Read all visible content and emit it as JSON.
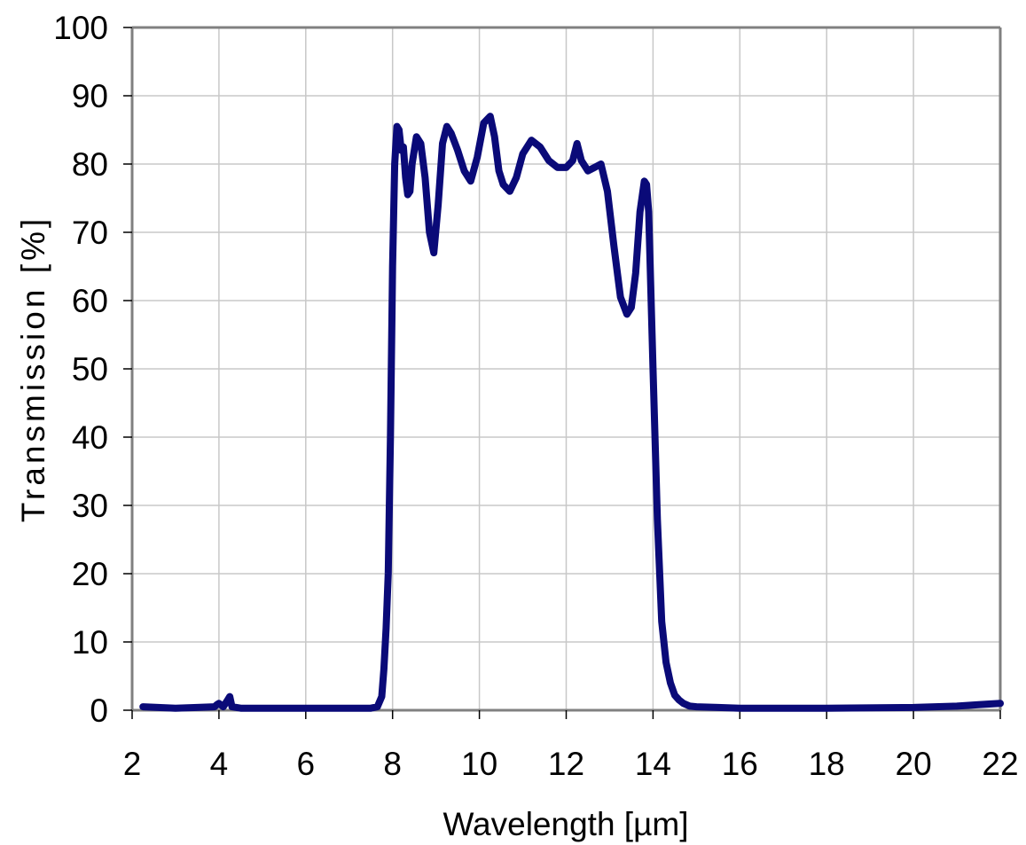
{
  "chart_data": {
    "type": "line",
    "title": "",
    "xlabel": "Wavelength [µm]",
    "ylabel": "Transmission  [%]",
    "xlim": [
      2,
      22
    ],
    "ylim": [
      0,
      100
    ],
    "x_ticks": [
      2,
      4,
      6,
      8,
      10,
      12,
      14,
      16,
      18,
      20,
      22
    ],
    "y_ticks": [
      0,
      10,
      20,
      30,
      40,
      50,
      60,
      70,
      80,
      90,
      100
    ],
    "x_tick_labels": [
      "2",
      "4",
      "6",
      "8",
      "10",
      "12",
      "14",
      "16",
      "18",
      "20",
      "22"
    ],
    "y_tick_labels": [
      "0",
      "10",
      "20",
      "30",
      "40",
      "50",
      "60",
      "70",
      "80",
      "90",
      "100"
    ],
    "grid": true,
    "legend": "none",
    "colors": {
      "line": "#0a0a78",
      "grid": "#c8c8c8",
      "frame": "#808080"
    },
    "series": [
      {
        "x": [
          2.25,
          3.0,
          3.5,
          3.9,
          3.95,
          4.0,
          4.1,
          4.2,
          4.25,
          4.3,
          4.5,
          5.0,
          6.0,
          7.0,
          7.5,
          7.65,
          7.75,
          7.8,
          7.85,
          7.9,
          7.95,
          8.0,
          8.05,
          8.1,
          8.15,
          8.2,
          8.25,
          8.3,
          8.35,
          8.4,
          8.45,
          8.55,
          8.65,
          8.75,
          8.85,
          8.95,
          9.05,
          9.15,
          9.25,
          9.35,
          9.5,
          9.65,
          9.8,
          9.95,
          10.1,
          10.25,
          10.35,
          10.45,
          10.55,
          10.7,
          10.85,
          11.0,
          11.2,
          11.4,
          11.6,
          11.8,
          12.0,
          12.15,
          12.25,
          12.35,
          12.5,
          12.65,
          12.8,
          12.95,
          13.1,
          13.25,
          13.4,
          13.5,
          13.6,
          13.7,
          13.8,
          13.85,
          13.9,
          14.0,
          14.1,
          14.2,
          14.3,
          14.4,
          14.5,
          14.6,
          14.7,
          14.85,
          15.0,
          15.5,
          16.0,
          18.0,
          20.0,
          21.0,
          21.5,
          22.0
        ],
        "y": [
          0.5,
          0.3,
          0.4,
          0.5,
          0.8,
          1.0,
          0.5,
          1.5,
          2.0,
          0.5,
          0.3,
          0.3,
          0.3,
          0.3,
          0.3,
          0.5,
          2.0,
          6.0,
          12.0,
          20.0,
          40.0,
          65.0,
          80.0,
          85.5,
          85.0,
          82.0,
          82.5,
          78.0,
          75.5,
          76.0,
          80.0,
          84.0,
          83.0,
          78.0,
          70.0,
          67.0,
          74.0,
          83.0,
          85.5,
          84.5,
          82.0,
          79.0,
          77.5,
          81.0,
          86.0,
          87.0,
          84.0,
          79.0,
          77.0,
          76.0,
          78.0,
          81.5,
          83.5,
          82.5,
          80.5,
          79.5,
          79.5,
          80.5,
          83.0,
          80.5,
          79.0,
          79.5,
          80.0,
          76.0,
          68.0,
          60.5,
          58.0,
          59.0,
          64.0,
          73.0,
          77.5,
          77.0,
          73.0,
          50.0,
          28.0,
          13.0,
          7.0,
          4.0,
          2.2,
          1.5,
          1.0,
          0.6,
          0.5,
          0.4,
          0.3,
          0.3,
          0.4,
          0.6,
          0.8,
          1.0
        ]
      }
    ]
  }
}
